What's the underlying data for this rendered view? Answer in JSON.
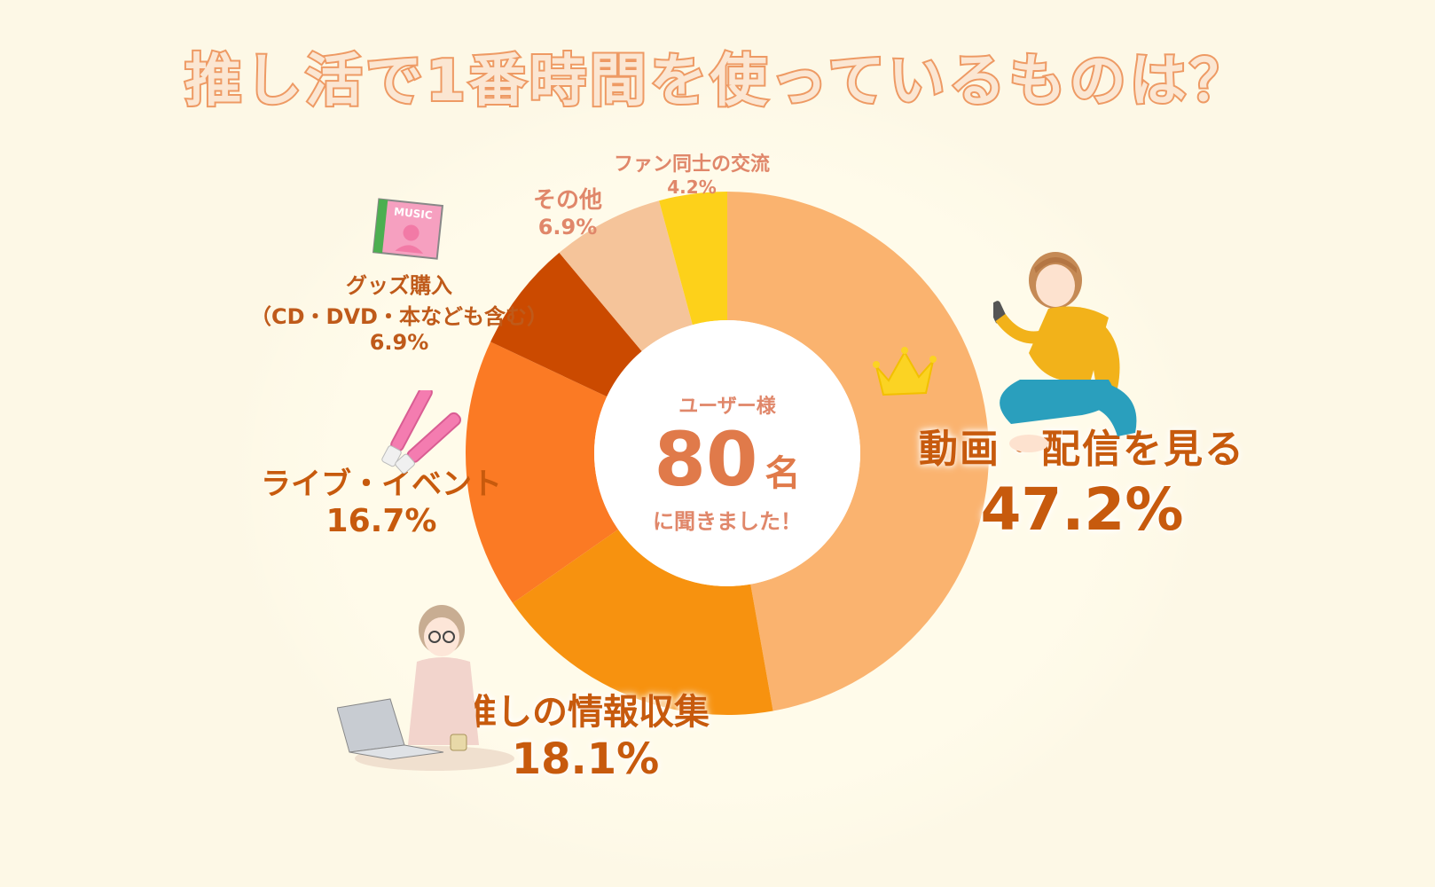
{
  "title": "推し活で1番時間を使っているものは？",
  "center": {
    "top": "ユーザー様",
    "number": "80",
    "unit": "名",
    "bottom": "に聞きました！"
  },
  "icons": {
    "crown": "crown-icon",
    "music_cd": "music-cd-icon",
    "penlights": "penlight-icon",
    "woman_phone": "woman-phone-icon",
    "woman_laptop": "woman-laptop-icon"
  },
  "cd_text": "MUSIC",
  "chart_data": {
    "type": "pie",
    "title": "推し活で1番時間を使っているものは？",
    "categories": [
      "動画・配信を見る",
      "推しの情報収集",
      "ライブ・イベント",
      "グッズ購入",
      "その他",
      "ファン同士の交流"
    ],
    "values": [
      47.2,
      18.1,
      16.7,
      6.9,
      6.9,
      4.2
    ],
    "unit": "%",
    "colors": [
      "#fab36f",
      "#f7920f",
      "#fb7a24",
      "#cb4a00",
      "#f5c49a",
      "#fdd11a"
    ],
    "labels": [
      {
        "name": "動画・配信を見る",
        "pct": "47.2%"
      },
      {
        "name": "推しの情報収集",
        "pct": "18.1%"
      },
      {
        "name": "ライブ・イベント",
        "pct": "16.7%"
      },
      {
        "name": "グッズ購入",
        "sub": "（CD・DVD・本なども含む）",
        "pct": "6.9%"
      },
      {
        "name": "その他",
        "pct": "6.9%"
      },
      {
        "name": "ファン同士の交流",
        "pct": "4.2%"
      }
    ]
  }
}
